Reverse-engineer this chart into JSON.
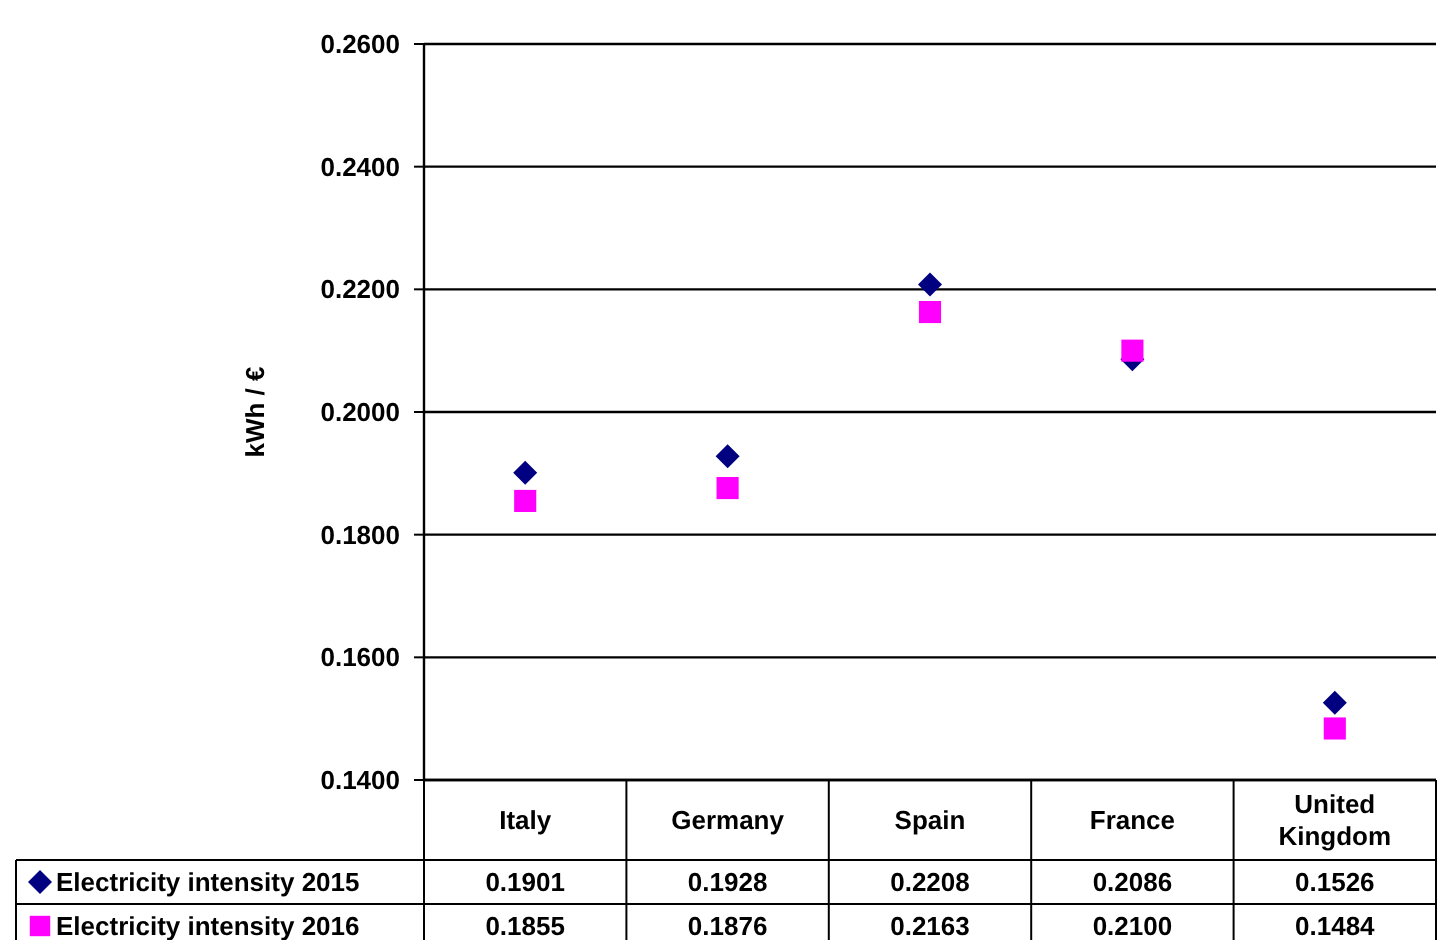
{
  "chart_data": {
    "type": "scatter",
    "ylabel": "kWh / €",
    "categories": [
      "Italy",
      "Germany",
      "Spain",
      "France",
      "United Kingdom"
    ],
    "series": [
      {
        "name": "Electricity intensity 2015",
        "color": "#000080",
        "marker": "diamond",
        "values": [
          0.1901,
          0.1928,
          0.2208,
          0.2086,
          0.1526
        ],
        "value_labels": [
          "0.1901",
          "0.1928",
          "0.2208",
          "0.2086",
          "0.1526"
        ]
      },
      {
        "name": "Electricity intensity 2016",
        "color": "#ff00ff",
        "marker": "square",
        "values": [
          0.1855,
          0.1876,
          0.2163,
          0.21,
          0.1484
        ],
        "value_labels": [
          "0.1855",
          "0.1876",
          "0.2163",
          "0.2100",
          "0.1484"
        ]
      }
    ],
    "ylim": [
      0.14,
      0.26
    ],
    "yticks": [
      {
        "value": 0.14,
        "label": "0.1400"
      },
      {
        "value": 0.16,
        "label": "0.1600"
      },
      {
        "value": 0.18,
        "label": "0.1800"
      },
      {
        "value": 0.2,
        "label": "0.2000"
      },
      {
        "value": 0.22,
        "label": "0.2200"
      },
      {
        "value": 0.24,
        "label": "0.2400"
      },
      {
        "value": 0.26,
        "label": "0.2600"
      }
    ],
    "grid": "y",
    "legend": "bottom",
    "data_labels": true
  }
}
